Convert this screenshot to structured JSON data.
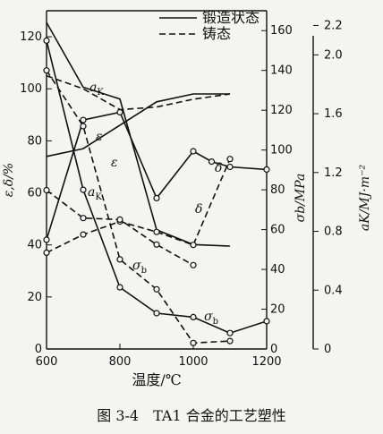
{
  "chart_data": {
    "type": "line",
    "caption": "图 3-4　TA1 合金的工艺塑性",
    "xlabel": "温度/℃",
    "x_ticks": [
      "600",
      "800",
      "1000",
      "1200"
    ],
    "xlim": [
      600,
      1200
    ],
    "axes": {
      "left": {
        "label": "ε,δ/%",
        "ylim": [
          0,
          130
        ],
        "ticks": [
          "0",
          "20",
          "40",
          "60",
          "80",
          "100",
          "120"
        ],
        "tick_values": [
          0,
          20,
          40,
          60,
          80,
          100,
          120
        ]
      },
      "middle": {
        "label": "σb/MPa",
        "ylim": [
          0,
          170
        ],
        "ticks": [
          "0",
          "20",
          "40",
          "60",
          "80",
          "100",
          "120",
          "140",
          "160"
        ],
        "tick_values": [
          0,
          20,
          40,
          60,
          80,
          100,
          120,
          140,
          160
        ]
      },
      "right": {
        "label": "aK/MJ·m⁻²",
        "ylim": [
          0,
          2.3
        ],
        "ticks": [
          "0",
          "0.4",
          "0.8",
          "1.2",
          "1.6",
          "2.0",
          "2.2"
        ],
        "tick_values": [
          0,
          0.4,
          0.8,
          1.2,
          1.6,
          2.0,
          2.2
        ]
      }
    },
    "legend": [
      {
        "label": "锻造状态",
        "style": "solid"
      },
      {
        "label": "铸态",
        "style": "dashed"
      }
    ],
    "series": [
      {
        "id": "forged-aK",
        "label": "aK",
        "state": "锻造状态",
        "axis": "right",
        "style": "solid",
        "marker": false,
        "x": [
          600,
          700,
          800,
          900,
          1000,
          1100
        ],
        "y": [
          2.22,
          1.78,
          1.7,
          0.81,
          0.71,
          0.7
        ]
      },
      {
        "id": "forged-epsilon",
        "label": "ε",
        "state": "锻造状态",
        "axis": "left",
        "style": "solid",
        "marker": false,
        "x": [
          600,
          700,
          800,
          900,
          1000,
          1100
        ],
        "y": [
          74,
          77,
          86,
          95,
          98,
          98
        ]
      },
      {
        "id": "forged-delta",
        "label": "δ",
        "state": "锻造状态",
        "axis": "left",
        "style": "solid",
        "marker": true,
        "x": [
          600,
          700,
          800,
          900,
          1000,
          1050,
          1100,
          1200
        ],
        "y": [
          42,
          88,
          91,
          58,
          76,
          72,
          70,
          69
        ]
      },
      {
        "id": "forged-sigma-b",
        "label": "σb",
        "state": "锻造状态",
        "axis": "middle",
        "style": "solid",
        "marker": true,
        "x": [
          600,
          700,
          800,
          900,
          1000,
          1100,
          1200
        ],
        "y": [
          155,
          80,
          31,
          18,
          16,
          8,
          14
        ]
      },
      {
        "id": "cast-delta",
        "label": "δ",
        "state": "铸态",
        "axis": "left",
        "style": "dashed",
        "marker": true,
        "x": [
          600,
          700,
          800,
          900,
          1000,
          1100
        ],
        "y": [
          37,
          44,
          49,
          45,
          40,
          73
        ]
      },
      {
        "id": "cast-epsilon",
        "label": "ε",
        "state": "铸态",
        "axis": "left",
        "style": "dashed",
        "marker": false,
        "x": [
          600,
          700,
          800,
          900,
          1000,
          1100
        ],
        "y": [
          105,
          100,
          92,
          93,
          96,
          98
        ]
      },
      {
        "id": "cast-aK",
        "label": "aK",
        "state": "铸态",
        "axis": "right",
        "style": "dashed",
        "marker": true,
        "x": [
          600,
          700,
          800,
          900,
          1000
        ],
        "y": [
          1.08,
          0.89,
          0.88,
          0.71,
          0.57
        ]
      },
      {
        "id": "cast-sigma-b",
        "label": "σb",
        "state": "铸态",
        "axis": "middle",
        "style": "dashed",
        "marker": true,
        "x": [
          600,
          700,
          800,
          900,
          1000,
          1100
        ],
        "y": [
          140,
          112,
          45,
          30,
          3,
          4
        ]
      }
    ],
    "annotations": [
      {
        "text": "aK",
        "series": "forged-aK"
      },
      {
        "text": "ε",
        "series": "forged-epsilon"
      },
      {
        "text": "δ",
        "series": "forged-delta"
      },
      {
        "text": "σb",
        "series": "forged-sigma-b"
      },
      {
        "text": "aK",
        "series": "cast-aK"
      },
      {
        "text": "ε",
        "series": "cast-epsilon"
      },
      {
        "text": "δ",
        "series": "cast-delta"
      },
      {
        "text": "σb",
        "series": "cast-sigma-b"
      }
    ]
  }
}
